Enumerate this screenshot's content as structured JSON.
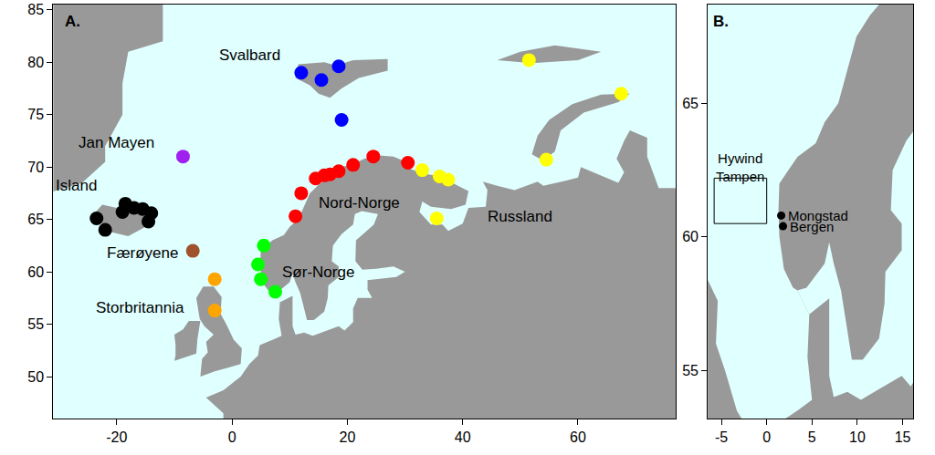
{
  "chart_data": [
    {
      "type": "map",
      "panel_label": "A.",
      "xlim": [
        -31,
        77
      ],
      "ylim": [
        46,
        85.5
      ],
      "xticks": [
        -20,
        0,
        20,
        40,
        60
      ],
      "yticks": [
        50,
        55,
        60,
        65,
        70,
        75,
        80,
        85
      ],
      "land": {
        "color": "#999999",
        "polygons": [
          {
            "lon": [
              -40,
              -12,
              -12,
              -18,
              -19,
              -19,
              -22,
              -22,
              -26,
              -32,
              -40
            ],
            "lat": [
              86,
              86,
              82,
              81,
              78,
              75,
              72,
              70.5,
              68.5,
              67.5,
              66
            ]
          },
          {
            "lon": [
              -24,
              -22.5,
              -20,
              -18,
              -15,
              -13.6,
              -15,
              -18,
              -21,
              -22.7,
              -22,
              -24
            ],
            "lat": [
              65.5,
              66.4,
              66.1,
              66.2,
              66.5,
              65.3,
              64.3,
              63.4,
              63.8,
              63.9,
              64.5,
              64.9
            ]
          },
          {
            "lon": [
              11,
              11.5,
              16,
              18,
              21,
              27,
              27,
              22,
              19,
              17,
              15,
              13.5
            ],
            "lat": [
              78.5,
              79.8,
              80,
              79.7,
              80.2,
              80.3,
              79.2,
              78.5,
              77.5,
              76.6,
              77,
              77.8
            ]
          },
          {
            "lon": [
              46,
              50,
              56,
              64,
              60,
              52
            ],
            "lat": [
              80.2,
              81,
              81.6,
              81,
              80.2,
              79.9
            ]
          },
          {
            "lon": [
              52,
              53,
              55,
              59,
              64,
              69,
              67,
              61,
              57,
              56,
              54
            ],
            "lat": [
              71.2,
              73,
              74.5,
              76,
              76.9,
              77,
              76.2,
              75.2,
              73.5,
              71.5,
              70.6
            ]
          },
          {
            "lon": [
              -5.5,
              -3,
              1.5,
              1.7,
              0.3,
              -1,
              -2,
              -1.8,
              -3.2,
              -5,
              -6.2,
              -5.6,
              -4.8,
              -3.2,
              -4.5,
              -4.2,
              -5.2
            ],
            "lat": [
              50,
              50.5,
              51.2,
              52.7,
              53.5,
              55,
              56,
              57.6,
              58.6,
              58.6,
              57.5,
              55.5,
              54.8,
              54,
              53.3,
              52.3,
              51.7
            ]
          },
          {
            "lon": [
              -10,
              -6.2,
              -6,
              -5.5,
              -7.5,
              -8.5,
              -10,
              -9.8,
              -9.8
            ],
            "lat": [
              51.5,
              52.2,
              53.6,
              55.3,
              55.3,
              54.5,
              54,
              53,
              52
            ]
          },
          {
            "lon": [
              -1.5,
              -1.5,
              -4.5,
              -1.5,
              1.5,
              3,
              4.5,
              4.8,
              7,
              8.6,
              8.1,
              8.3,
              7,
              6.5,
              5.5,
              5,
              4.9,
              5,
              6,
              7,
              9,
              10,
              11.5,
              12.5,
              13.5,
              15,
              16,
              17,
              19,
              21,
              23,
              25.5,
              28,
              31,
              31,
              33,
              36,
              41,
              40.5,
              38,
              34.5,
              33,
              32.5,
              34.5,
              36.5,
              37.5,
              40,
              41,
              44,
              44.3,
              43.5,
              46,
              49,
              53,
              54,
              58,
              60,
              60.5,
              63,
              67,
              68,
              66.7,
              68,
              69,
              72,
              72,
              74,
              80,
              80
            ],
            "lat": [
              44,
              46.5,
              48,
              48.7,
              50,
              51.2,
              52,
              53,
              53.5,
              53.9,
              55.5,
              57.1,
              58,
              58.1,
              58.8,
              60,
              61,
              62,
              62.5,
              63,
              63.5,
              64.3,
              65,
              66.3,
              67.5,
              68.3,
              68.7,
              69.5,
              70,
              70.3,
              70.8,
              71.1,
              71,
              70.3,
              69.8,
              69.4,
              69.1,
              67.7,
              66.4,
              66,
              66.2,
              66.7,
              65.7,
              64.5,
              64.5,
              63.9,
              64.6,
              66.1,
              66.2,
              67.8,
              68.6,
              68.2,
              67.8,
              68.6,
              68.2,
              68.7,
              69,
              70,
              69.4,
              68.5,
              69.5,
              70.8,
              72.5,
              73.5,
              72.8,
              71,
              68,
              68,
              44
            ]
          }
        ]
      },
      "water": {
        "color": "#e0ffff",
        "polygons": [
          {
            "lon": [
              7,
              8,
              10,
              10.5,
              11,
              11.8,
              12.5,
              13,
              14.2,
              16,
              16.6,
              16.7,
              18.5,
              18.5,
              17.3,
              17.5,
              19,
              21,
              21.3,
              22.5,
              25.3,
              24.6,
              21.5,
              21.4,
              22.6,
              25,
              28,
              30,
              28.5,
              23.5,
              23.5,
              24.3,
              21.8,
              21,
              21,
              19.5,
              18.5,
              16,
              14,
              12.5,
              11,
              10.5,
              10.5,
              10.5,
              8.3
            ],
            "lat": [
              58,
              58.1,
              59,
              59.8,
              59,
              58,
              56.5,
              55.4,
              55.4,
              56.2,
              57.5,
              58.7,
              59.5,
              60.5,
              61,
              62.5,
              63.6,
              64.5,
              65.5,
              65.8,
              65.5,
              64.5,
              63,
              61,
              60.2,
              60.3,
              60.5,
              60,
              59.5,
              59.2,
              58.3,
              57.5,
              57.5,
              56.5,
              55.2,
              54.4,
              54.8,
              54.3,
              53.9,
              54.2,
              54,
              54.8,
              56.2,
              57.7,
              57.1
            ]
          }
        ]
      },
      "regions": [
        {
          "name": "Svalbard",
          "color": "#0000ff",
          "lon": [
            12,
            18.5,
            15.5,
            19
          ],
          "lat": [
            79,
            79.6,
            78.3,
            74.5
          ]
        },
        {
          "name": "Jan Mayen",
          "color": "#a020f0",
          "lon": [
            -8.5
          ],
          "lat": [
            71
          ]
        },
        {
          "name": "Island",
          "color": "#000000",
          "lon": [
            -23.5,
            -22,
            -18.5,
            -17,
            -15.5,
            -14,
            -14.5,
            -19
          ],
          "lat": [
            65.1,
            64,
            66.5,
            66.1,
            66,
            65.6,
            64.8,
            65.7
          ]
        },
        {
          "name": "Færøyene",
          "color": "#a0522d",
          "lon": [
            -6.8
          ],
          "lat": [
            62
          ]
        },
        {
          "name": "Storbritannia",
          "color": "#ffa500",
          "lon": [
            -3,
            -3
          ],
          "lat": [
            59.3,
            56.3
          ]
        },
        {
          "name": "Sør-Norge",
          "color": "#00ff00",
          "lon": [
            5.5,
            4.5,
            5,
            7.5
          ],
          "lat": [
            62.5,
            60.7,
            59.3,
            58.1
          ]
        },
        {
          "name": "Nord-Norge",
          "color": "#ff0000",
          "lon": [
            11,
            12,
            14.5,
            16,
            17,
            18.5,
            21,
            24.5,
            30.5
          ],
          "lat": [
            65.3,
            67.5,
            68.9,
            69.2,
            69.3,
            69.6,
            70.2,
            71,
            70.4
          ]
        },
        {
          "name": "Russland",
          "color": "#ffff00",
          "lon": [
            33,
            36,
            37.5,
            35.5,
            54.5,
            51.5,
            67.5
          ],
          "lat": [
            69.7,
            69.1,
            68.8,
            65.1,
            70.7,
            80.2,
            77
          ]
        }
      ]
    },
    {
      "type": "map",
      "panel_label": "B.",
      "xlim": [
        -6.5,
        16.2
      ],
      "ylim": [
        53.2,
        68.7
      ],
      "xticks": [
        -5,
        0,
        5,
        10,
        15
      ],
      "yticks": [
        55,
        60,
        65
      ],
      "land": {
        "color": "#999999",
        "polygons": [
          {
            "lon": [
              -9.1,
              -6.6,
              -2.1,
              -1.9,
              -3.3,
              -4.6,
              -5.6,
              -5.4,
              -6.8,
              -8.6,
              -9.8,
              -9.2,
              -8.4,
              -6.8,
              -8.1,
              -7.8,
              -8.8
            ],
            "lat": [
              50,
              50.5,
              51.2,
              52.7,
              53.5,
              55,
              56,
              57.6,
              58.6,
              58.6,
              57.5,
              55.5,
              54.8,
              54,
              53.3,
              52.3,
              51.7
            ]
          },
          {
            "lon": [
              -2.1,
              -0.6,
              0.9,
              1.2,
              3.4,
              5,
              4.5,
              4.7,
              3.4,
              2.9,
              1.9,
              1.4,
              1.3,
              1.4,
              2.4,
              3.4,
              5.4,
              6.4,
              7.9,
              8.9,
              9.9,
              11.4,
              12.4,
              13.4,
              15.4,
              21.4,
              26.4,
              26.4,
              -2.1
            ],
            "lat": [
              50,
              51.2,
              52,
              53,
              53.5,
              53.9,
              55.5,
              57.1,
              58,
              58.1,
              58.8,
              60,
              61,
              62,
              62.5,
              63,
              63.5,
              64.3,
              65,
              66.3,
              67.5,
              68.3,
              68.7,
              69.5,
              70,
              71,
              71,
              48,
              48
            ]
          }
        ]
      },
      "water": {
        "color": "#e0ffff",
        "polygons": [
          {
            "lon": [
              3.4,
              4.4,
              6.4,
              6.9,
              7.4,
              8.2,
              8.9,
              9.4,
              10.6,
              12.4,
              13,
              13.1,
              14.9,
              14.9,
              13.7,
              13.9,
              15.4,
              17.4,
              17.7,
              18.9,
              21.7,
              21,
              17.9,
              17.8,
              19,
              21.4,
              24.4,
              26.4,
              24.9,
              19.9,
              19.9,
              20.7,
              18.2,
              17.4,
              17.4,
              15.9,
              14.9,
              12.4,
              10.4,
              8.9,
              7.4,
              6.9,
              6.9,
              6.9,
              4.7
            ],
            "lat": [
              58,
              58.1,
              59,
              59.8,
              59,
              58,
              56.5,
              55.4,
              55.4,
              56.2,
              57.5,
              58.7,
              59.5,
              60.5,
              61,
              62.5,
              63.6,
              64.5,
              65.5,
              65.8,
              65.5,
              64.5,
              63,
              61,
              60.2,
              60.3,
              60.5,
              60,
              59.5,
              59.2,
              58.3,
              57.5,
              57.5,
              56.5,
              55.2,
              54.4,
              54.8,
              54.3,
              53.9,
              54.2,
              54,
              54.8,
              56.2,
              57.7,
              57.1
            ]
          }
        ]
      },
      "areas": [
        {
          "label": [
            "Hywind",
            "Tampen"
          ],
          "lon": [
            -5.8,
            0
          ],
          "lat": [
            60.5,
            62.2
          ]
        }
      ],
      "places": [
        {
          "name": "Mongstad",
          "color": "#000000",
          "lon": 1.6,
          "lat": 60.8
        },
        {
          "name": "Bergen",
          "color": "#000000",
          "lon": 1.8,
          "lat": 60.4
        }
      ]
    }
  ]
}
